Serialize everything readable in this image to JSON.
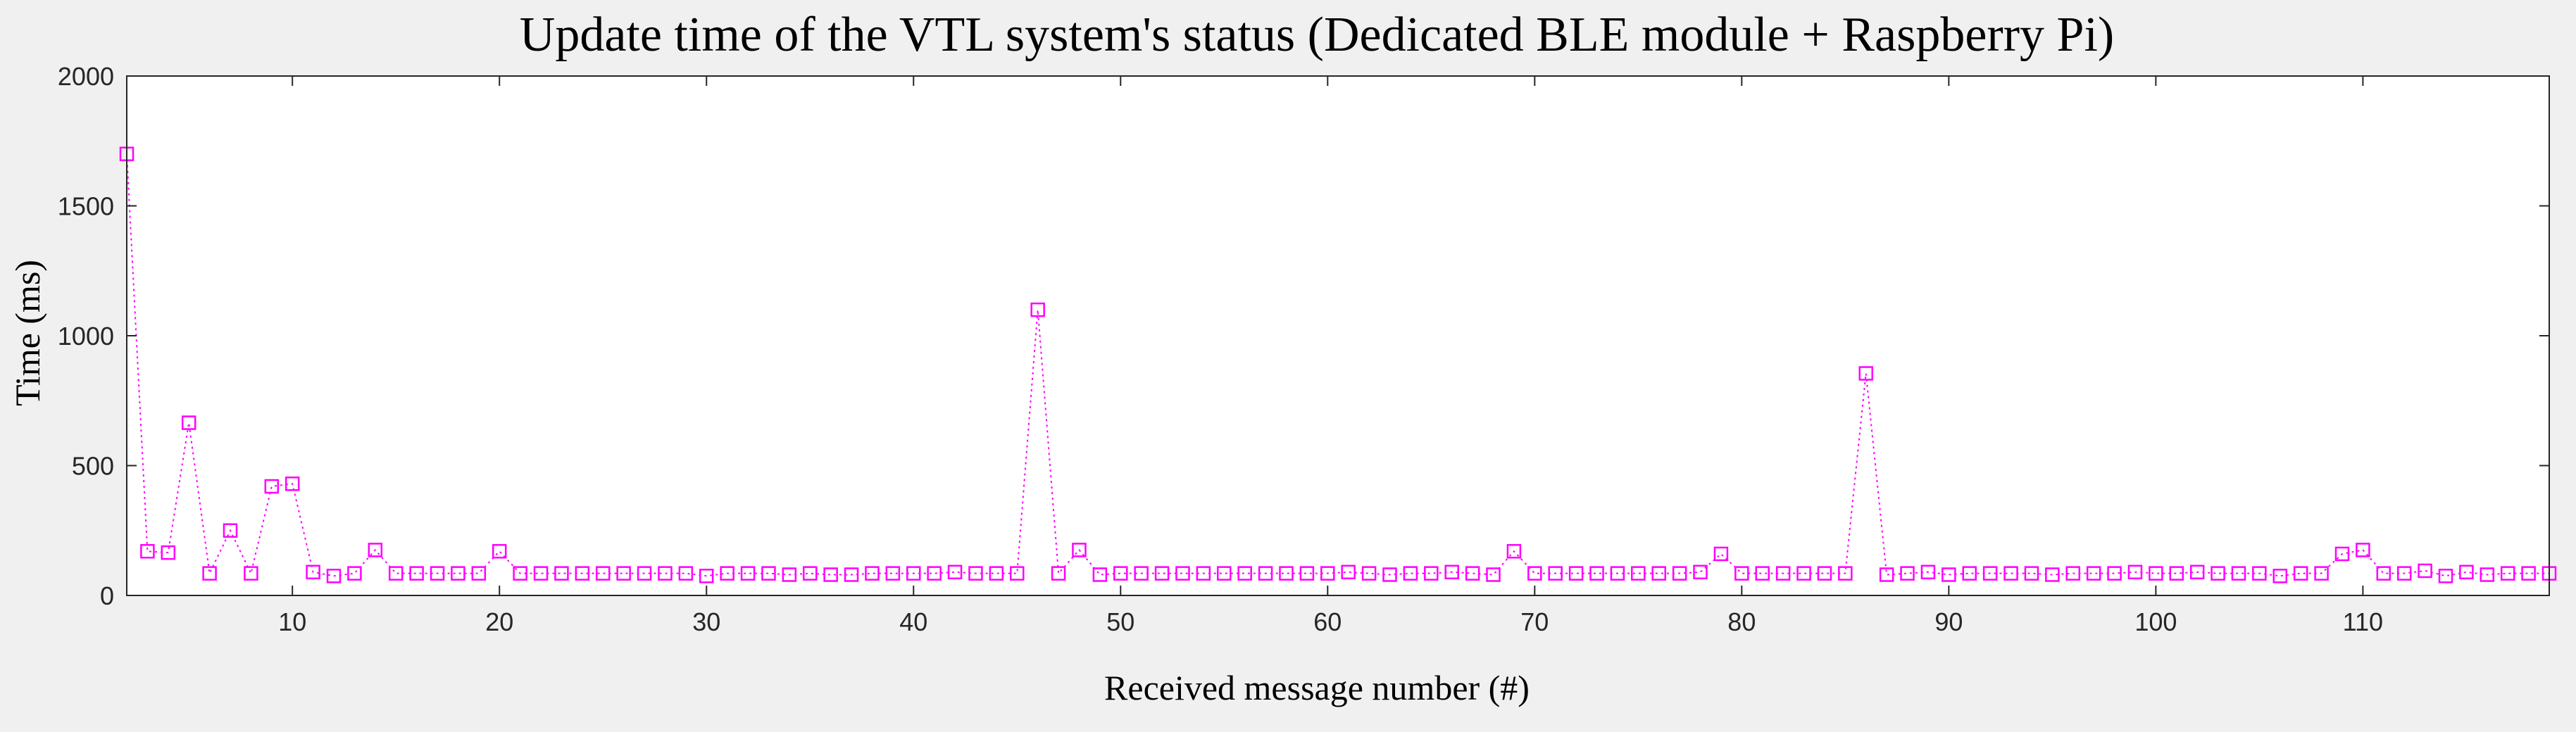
{
  "chart_data": {
    "type": "line",
    "title": "Update time of the VTL system's status (Dedicated BLE module + Raspberry Pi)",
    "xlabel": "Received message number (#)",
    "ylabel": "Time (ms)",
    "xlim": [
      2,
      119
    ],
    "ylim": [
      0,
      2000
    ],
    "xticks": [
      10,
      20,
      30,
      40,
      50,
      60,
      70,
      80,
      90,
      100,
      110
    ],
    "yticks": [
      0,
      500,
      1000,
      1500,
      2000
    ],
    "grid": false,
    "legend": "none",
    "series": [
      {
        "color": "#ff00ff",
        "marker": "square",
        "line_style": "dotted",
        "x": [
          2,
          3,
          4,
          5,
          6,
          7,
          8,
          9,
          10,
          11,
          12,
          13,
          14,
          15,
          16,
          17,
          18,
          19,
          20,
          21,
          22,
          23,
          24,
          25,
          26,
          27,
          28,
          29,
          30,
          31,
          32,
          33,
          34,
          35,
          36,
          37,
          38,
          39,
          40,
          41,
          42,
          43,
          44,
          45,
          46,
          47,
          48,
          49,
          50,
          51,
          52,
          53,
          54,
          55,
          56,
          57,
          58,
          59,
          60,
          61,
          62,
          63,
          64,
          65,
          66,
          67,
          68,
          69,
          70,
          71,
          72,
          73,
          74,
          75,
          76,
          77,
          78,
          79,
          80,
          81,
          82,
          83,
          84,
          85,
          86,
          87,
          88,
          89,
          90,
          91,
          92,
          93,
          94,
          95,
          96,
          97,
          98,
          99,
          100,
          101,
          102,
          103,
          104,
          105,
          106,
          107,
          108,
          109,
          110,
          111,
          112,
          113,
          114,
          115,
          116,
          117,
          118,
          119
        ],
        "y": [
          1700,
          170,
          165,
          665,
          85,
          250,
          85,
          420,
          430,
          90,
          75,
          85,
          175,
          85,
          85,
          85,
          85,
          85,
          170,
          85,
          85,
          85,
          85,
          85,
          85,
          85,
          85,
          85,
          75,
          85,
          85,
          85,
          80,
          85,
          80,
          80,
          85,
          85,
          85,
          85,
          90,
          85,
          85,
          85,
          1100,
          85,
          175,
          80,
          85,
          85,
          85,
          85,
          85,
          85,
          85,
          85,
          85,
          85,
          85,
          90,
          85,
          80,
          85,
          85,
          90,
          85,
          80,
          170,
          85,
          85,
          85,
          85,
          85,
          85,
          85,
          85,
          90,
          160,
          85,
          85,
          85,
          85,
          85,
          85,
          855,
          80,
          85,
          90,
          80,
          85,
          85,
          85,
          85,
          80,
          85,
          85,
          85,
          90,
          85,
          85,
          90,
          85,
          85,
          85,
          75,
          85,
          85,
          160,
          175,
          85,
          85,
          95,
          75,
          90,
          80,
          85,
          85,
          85
        ]
      }
    ]
  }
}
